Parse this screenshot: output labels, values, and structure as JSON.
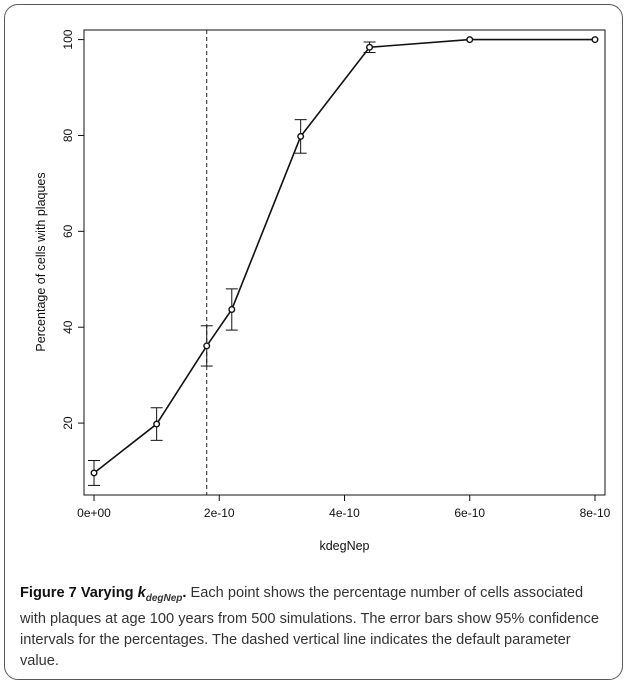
{
  "chart_data": {
    "type": "line",
    "title": "",
    "xlabel": "kdegNep",
    "ylabel": "Percentage of cells with plaques",
    "xlim": [
      -1.6e-11,
      8.16e-10
    ],
    "ylim": [
      5,
      102
    ],
    "x_ticks": [
      0,
      2e-10,
      4e-10,
      6e-10,
      8e-10
    ],
    "x_tick_labels": [
      "0e+00",
      "2e-10",
      "4e-10",
      "6e-10",
      "8e-10"
    ],
    "y_ticks": [
      20,
      40,
      60,
      80,
      100
    ],
    "y_tick_labels": [
      "20",
      "40",
      "60",
      "80",
      "100"
    ],
    "grid": false,
    "legend": "none",
    "reference_line": {
      "x": 1.8e-10,
      "style": "dashed"
    },
    "series": [
      {
        "x": [
          0,
          1e-10,
          1.8e-10,
          2.2e-10,
          3.3e-10,
          4.4e-10,
          6e-10,
          8e-10
        ],
        "values": [
          9.6,
          19.8,
          36.1,
          43.7,
          79.8,
          98.4,
          100.0,
          100.0
        ],
        "ci_low": [
          7.0,
          16.4,
          31.9,
          39.4,
          76.3,
          97.3,
          100.0,
          100.0
        ],
        "ci_high": [
          12.2,
          23.2,
          40.3,
          48.0,
          83.3,
          99.5,
          100.0,
          100.0
        ]
      }
    ]
  },
  "caption": {
    "figure_label": "Figure 7 Varying ",
    "param_symbol": "k",
    "param_subscript": "degNep",
    "title_end": ".",
    "body": " Each point shows the percentage number of cells associated with plaques at age 100 years from 500 simulations. The error bars show 95% confidence intervals for the percentages. The dashed vertical line indicates the default parameter value."
  },
  "colors": {
    "line": "#111111",
    "frame": "#111111",
    "box_border": "#5a5a5a"
  }
}
